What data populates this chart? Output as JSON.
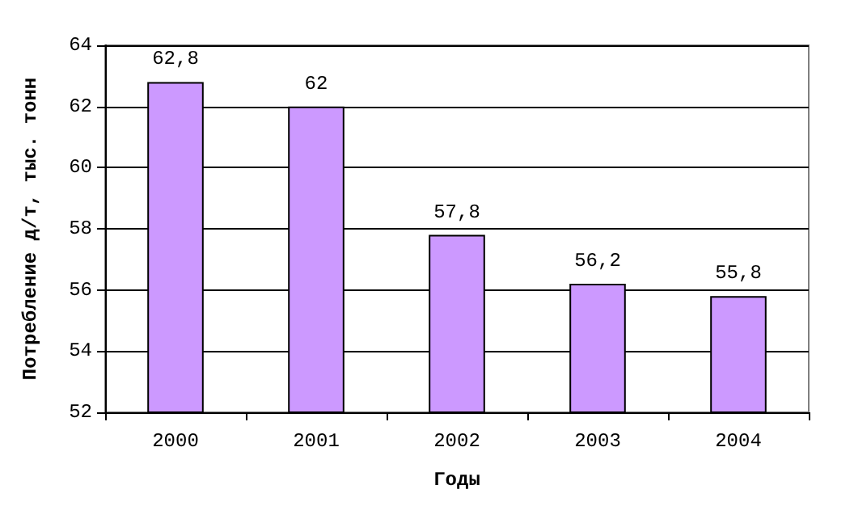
{
  "chart_data": {
    "type": "bar",
    "xlabel": "Годы",
    "ylabel": "Потребление д/т, тыс. тонн",
    "categories": [
      "2000",
      "2001",
      "2002",
      "2003",
      "2004"
    ],
    "values": [
      62.8,
      62,
      57.8,
      56.2,
      55.8
    ],
    "value_labels": [
      "62,8",
      "62",
      "57,8",
      "56,2",
      "55,8"
    ],
    "color": "#cc99ff",
    "ylim": [
      52,
      64
    ],
    "yticks": [
      52,
      54,
      56,
      58,
      60,
      62,
      64
    ],
    "grid": "y"
  }
}
